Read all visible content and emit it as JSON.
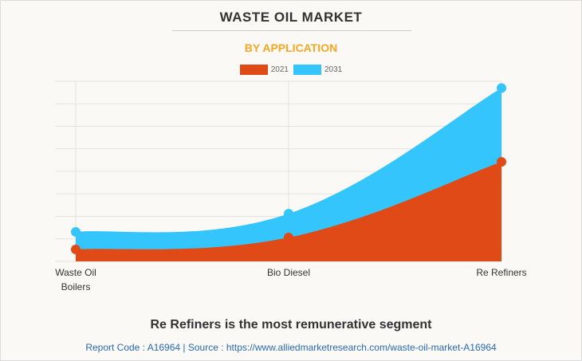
{
  "title": "WASTE OIL MARKET",
  "subtitle": "BY APPLICATION",
  "chart_data": {
    "type": "area",
    "categories": [
      [
        "Waste Oil",
        "Boilers"
      ],
      [
        "Bio Diesel"
      ],
      [
        "Re Refiners"
      ]
    ],
    "series": [
      {
        "name": "2021",
        "color": "#e04a16",
        "values": [
          0.53,
          1.06,
          4.42
        ]
      },
      {
        "name": "2031",
        "color": "#33c5fc",
        "values": [
          1.31,
          2.12,
          7.7
        ]
      }
    ],
    "ylim": [
      0,
      8
    ],
    "grid": true,
    "legend": "top-center"
  },
  "footer": {
    "headline": "Re Refiners is the most remunerative segment",
    "source": "Report Code : A16964  |  Source : https://www.alliedmarketresearch.com/waste-oil-market-A16964"
  }
}
